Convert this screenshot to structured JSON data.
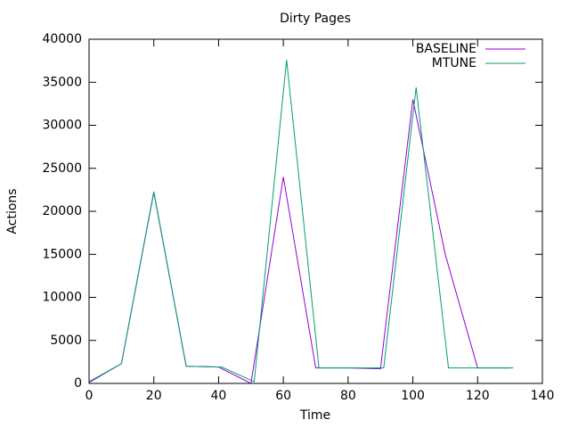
{
  "chart_data": {
    "type": "line",
    "title": "Dirty Pages",
    "x_label": "Time",
    "y_label": "Actions",
    "series": [
      {
        "name": "BASELINE",
        "color": "#9400d3",
        "x": [
          0,
          10,
          20,
          30,
          40,
          50,
          60,
          70,
          80,
          90,
          100,
          110,
          120,
          130
        ],
        "values": [
          100,
          2300,
          22200,
          2000,
          1900,
          0,
          24000,
          1800,
          1800,
          1700,
          33000,
          15000,
          1800,
          1800
        ]
      },
      {
        "name": "MTUNE",
        "color": "#009e73",
        "x": [
          0,
          10,
          20,
          30,
          41,
          51,
          61,
          71,
          81,
          91,
          101,
          111,
          121,
          131
        ],
        "values": [
          200,
          2300,
          22300,
          2000,
          1900,
          200,
          37600,
          1800,
          1800,
          1800,
          34400,
          1800,
          1800,
          1800
        ]
      }
    ],
    "xlim": [
      0,
      140
    ],
    "xticks": [
      0,
      20,
      40,
      60,
      80,
      100,
      120,
      140
    ],
    "ylim": [
      0,
      40000
    ],
    "yticks": [
      0,
      5000,
      10000,
      15000,
      20000,
      25000,
      30000,
      35000,
      40000
    ],
    "grid": false,
    "legend": "top-right"
  }
}
